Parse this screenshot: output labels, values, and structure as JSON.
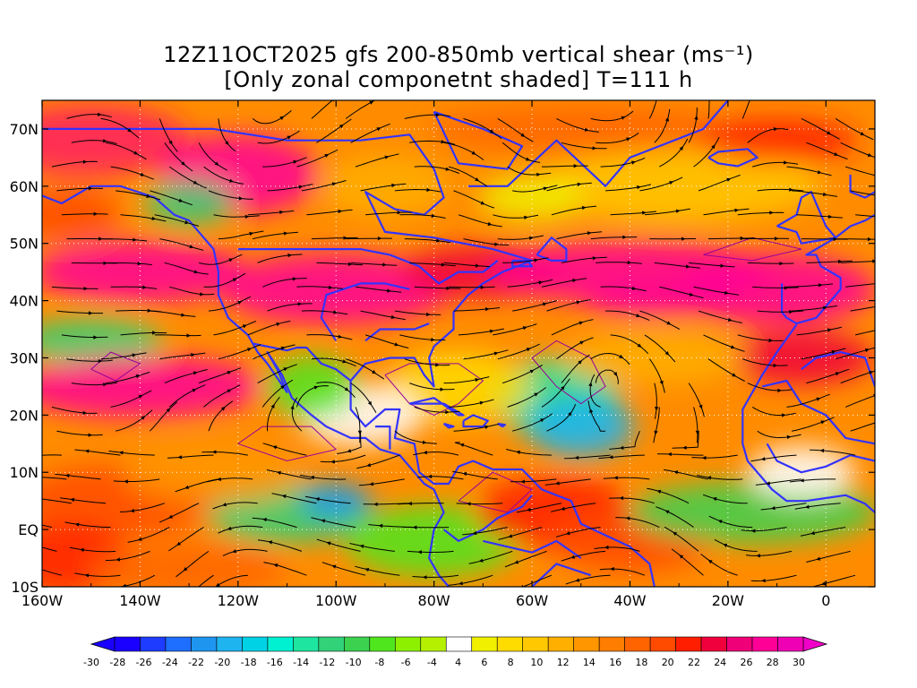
{
  "title": {
    "line1": "12Z11OCT2025 gfs 200-850mb vertical shear (ms⁻¹)",
    "line2": "[Only zonal componetnt shaded] T=111 h"
  },
  "map": {
    "lon_range": [
      -160,
      10
    ],
    "lat_range": [
      -10,
      75
    ],
    "lon_ticks": [
      {
        "value": -160,
        "label": "160W"
      },
      {
        "value": -140,
        "label": "140W"
      },
      {
        "value": -120,
        "label": "120W"
      },
      {
        "value": -100,
        "label": "100W"
      },
      {
        "value": -80,
        "label": "80W"
      },
      {
        "value": -60,
        "label": "60W"
      },
      {
        "value": -40,
        "label": "40W"
      },
      {
        "value": -20,
        "label": "20W"
      },
      {
        "value": 0,
        "label": "0"
      }
    ],
    "lat_ticks": [
      {
        "value": 70,
        "label": "70N"
      },
      {
        "value": 60,
        "label": "60N"
      },
      {
        "value": 50,
        "label": "50N"
      },
      {
        "value": 40,
        "label": "40N"
      },
      {
        "value": 30,
        "label": "30N"
      },
      {
        "value": 20,
        "label": "20N"
      },
      {
        "value": 10,
        "label": "10N"
      },
      {
        "value": 0,
        "label": "EQ"
      },
      {
        "value": -10,
        "label": "10S"
      }
    ],
    "coastline_color": "#3333ff",
    "contour_color": "#990099",
    "streamline_color": "#000000"
  },
  "colorbar": {
    "labels": [
      "-30",
      "-28",
      "-26",
      "-24",
      "-22",
      "-20",
      "-18",
      "-16",
      "-14",
      "-12",
      "-10",
      "-8",
      "-6",
      "-4",
      "4",
      "6",
      "8",
      "10",
      "12",
      "14",
      "16",
      "18",
      "20",
      "22",
      "24",
      "26",
      "28",
      "30"
    ],
    "colors": [
      "#1a00ff",
      "#1e3cff",
      "#1e6eff",
      "#1e96f0",
      "#1eb4f0",
      "#00d2e6",
      "#00f0d2",
      "#1ee6a0",
      "#32d278",
      "#3cd250",
      "#50e61e",
      "#8cf000",
      "#b4f000",
      "#ffffff",
      "#f0f000",
      "#ffdc00",
      "#ffc800",
      "#ffaf00",
      "#ff9600",
      "#ff7d00",
      "#ff6400",
      "#ff4b00",
      "#ff1e00",
      "#f0003c",
      "#f00078",
      "#ff0096",
      "#f000b4"
    ],
    "under_color": "#1a00ff",
    "over_color": "#f000c8"
  }
}
